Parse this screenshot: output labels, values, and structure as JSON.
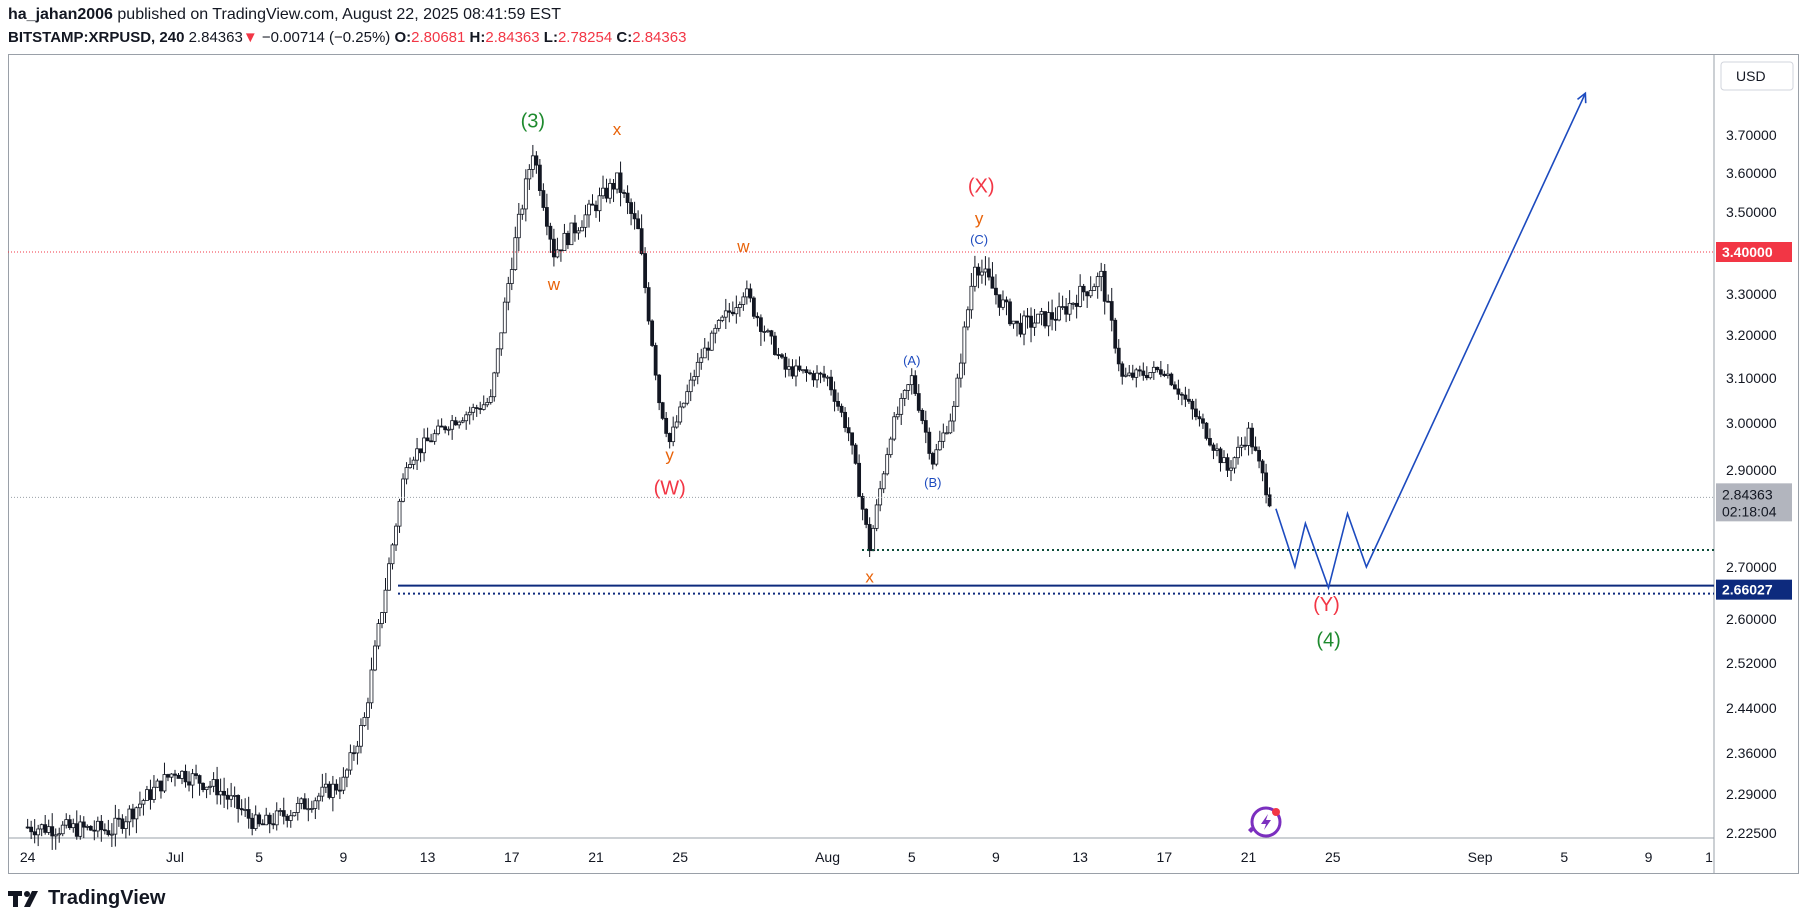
{
  "header": {
    "publisher": "ha_jahan2006",
    "published_text": "published on TradingView.com, August 22, 2025 08:41:59 EST",
    "symbol": "BITSTAMP:XRPUSD, 240",
    "last": "2.84363",
    "change_arrow": "▼",
    "change": "−0.00714 (−0.25%)",
    "o_label": "O:",
    "o": "2.80681",
    "h_label": "H:",
    "h": "2.84363",
    "l_label": "L:",
    "l": "2.78254",
    "c_label": "C:",
    "c": "2.84363"
  },
  "brand": {
    "name": "TradingView",
    "logo_icon": "tradingview-logo-icon"
  },
  "colors": {
    "up": "#131722",
    "down": "#131722",
    "red": "#f23645",
    "green": "#1e8a2e",
    "orange": "#e8630a",
    "blue": "#1d4bbf",
    "navy": "#0d2a7d",
    "price_badge": "#b2b5be"
  },
  "chart_data": {
    "type": "candlestick",
    "currency": "USD",
    "y_ticks": [
      "3.70000",
      "3.60000",
      "3.50000",
      "3.30000",
      "3.20000",
      "3.10000",
      "3.00000",
      "2.90000",
      "2.70000",
      "2.60000",
      "2.52000",
      "2.44000",
      "2.36000",
      "2.29000",
      "2.22500"
    ],
    "x_ticks": [
      "24",
      "Jul",
      "5",
      "9",
      "13",
      "17",
      "21",
      "25",
      "Aug",
      "5",
      "9",
      "13",
      "17",
      "21",
      "25",
      "Sep",
      "5",
      "9",
      "1"
    ],
    "price_labels": {
      "resistance": "3.40000",
      "current": "2.84363",
      "countdown": "02:18:04",
      "support": "2.66027"
    },
    "wave_labels": [
      "(3)",
      "x",
      "w",
      "w",
      "y",
      "(W)",
      "(A)",
      "(B)",
      "x",
      "(X)",
      "y",
      "(C)",
      "(Y)",
      "(4)"
    ],
    "path_points": [
      [
        "Jun 24",
        2.235
      ],
      [
        "Jun 28",
        2.23
      ],
      [
        "Jul 1",
        2.33
      ],
      [
        "Jul 3",
        2.3
      ],
      [
        "Jul 5",
        2.235
      ],
      [
        "Jul 7",
        2.27
      ],
      [
        "Jul 9",
        2.31
      ],
      [
        "Jul 10",
        2.42
      ],
      [
        "Jul 11",
        2.66
      ],
      [
        "Jul 12",
        2.92
      ],
      [
        "Jul 14",
        3.0
      ],
      [
        "Jul 16",
        3.05
      ],
      [
        "Jul 17",
        3.38
      ],
      [
        "Jul 18",
        3.66
      ],
      [
        "Jul 19",
        3.4
      ],
      [
        "Jul 21",
        3.52
      ],
      [
        "Jul 22",
        3.58
      ],
      [
        "Jul 23",
        3.45
      ],
      [
        "Jul 24",
        3.05
      ],
      [
        "Jul 24.5",
        2.96
      ],
      [
        "Jul 26",
        3.15
      ],
      [
        "Jul 28",
        3.31
      ],
      [
        "Jul 30",
        3.12
      ],
      [
        "Aug 1",
        3.1
      ],
      [
        "Aug 2",
        2.98
      ],
      [
        "Aug 3",
        2.74
      ],
      [
        "Aug 4",
        2.98
      ],
      [
        "Aug 5",
        3.1
      ],
      [
        "Aug 6",
        2.92
      ],
      [
        "Aug 7",
        3.03
      ],
      [
        "Aug 8",
        3.38
      ],
      [
        "Aug 10",
        3.22
      ],
      [
        "Aug 12",
        3.25
      ],
      [
        "Aug 13",
        3.3
      ],
      [
        "Aug 14",
        3.34
      ],
      [
        "Aug 15",
        3.1
      ],
      [
        "Aug 17",
        3.12
      ],
      [
        "Aug 18",
        3.05
      ],
      [
        "Aug 19",
        2.98
      ],
      [
        "Aug 20",
        2.9
      ],
      [
        "Aug 21",
        2.98
      ],
      [
        "Aug 22",
        2.84
      ]
    ],
    "projection": [
      [
        "Aug 22.3",
        2.82
      ],
      [
        "Aug 23.2",
        2.7
      ],
      [
        "Aug 23.7",
        2.79
      ],
      [
        "Aug 24.8",
        2.66
      ],
      [
        "Aug 25.7",
        2.81
      ],
      [
        "Aug 26.6",
        2.7
      ],
      [
        "Sep 6",
        3.81
      ]
    ]
  }
}
